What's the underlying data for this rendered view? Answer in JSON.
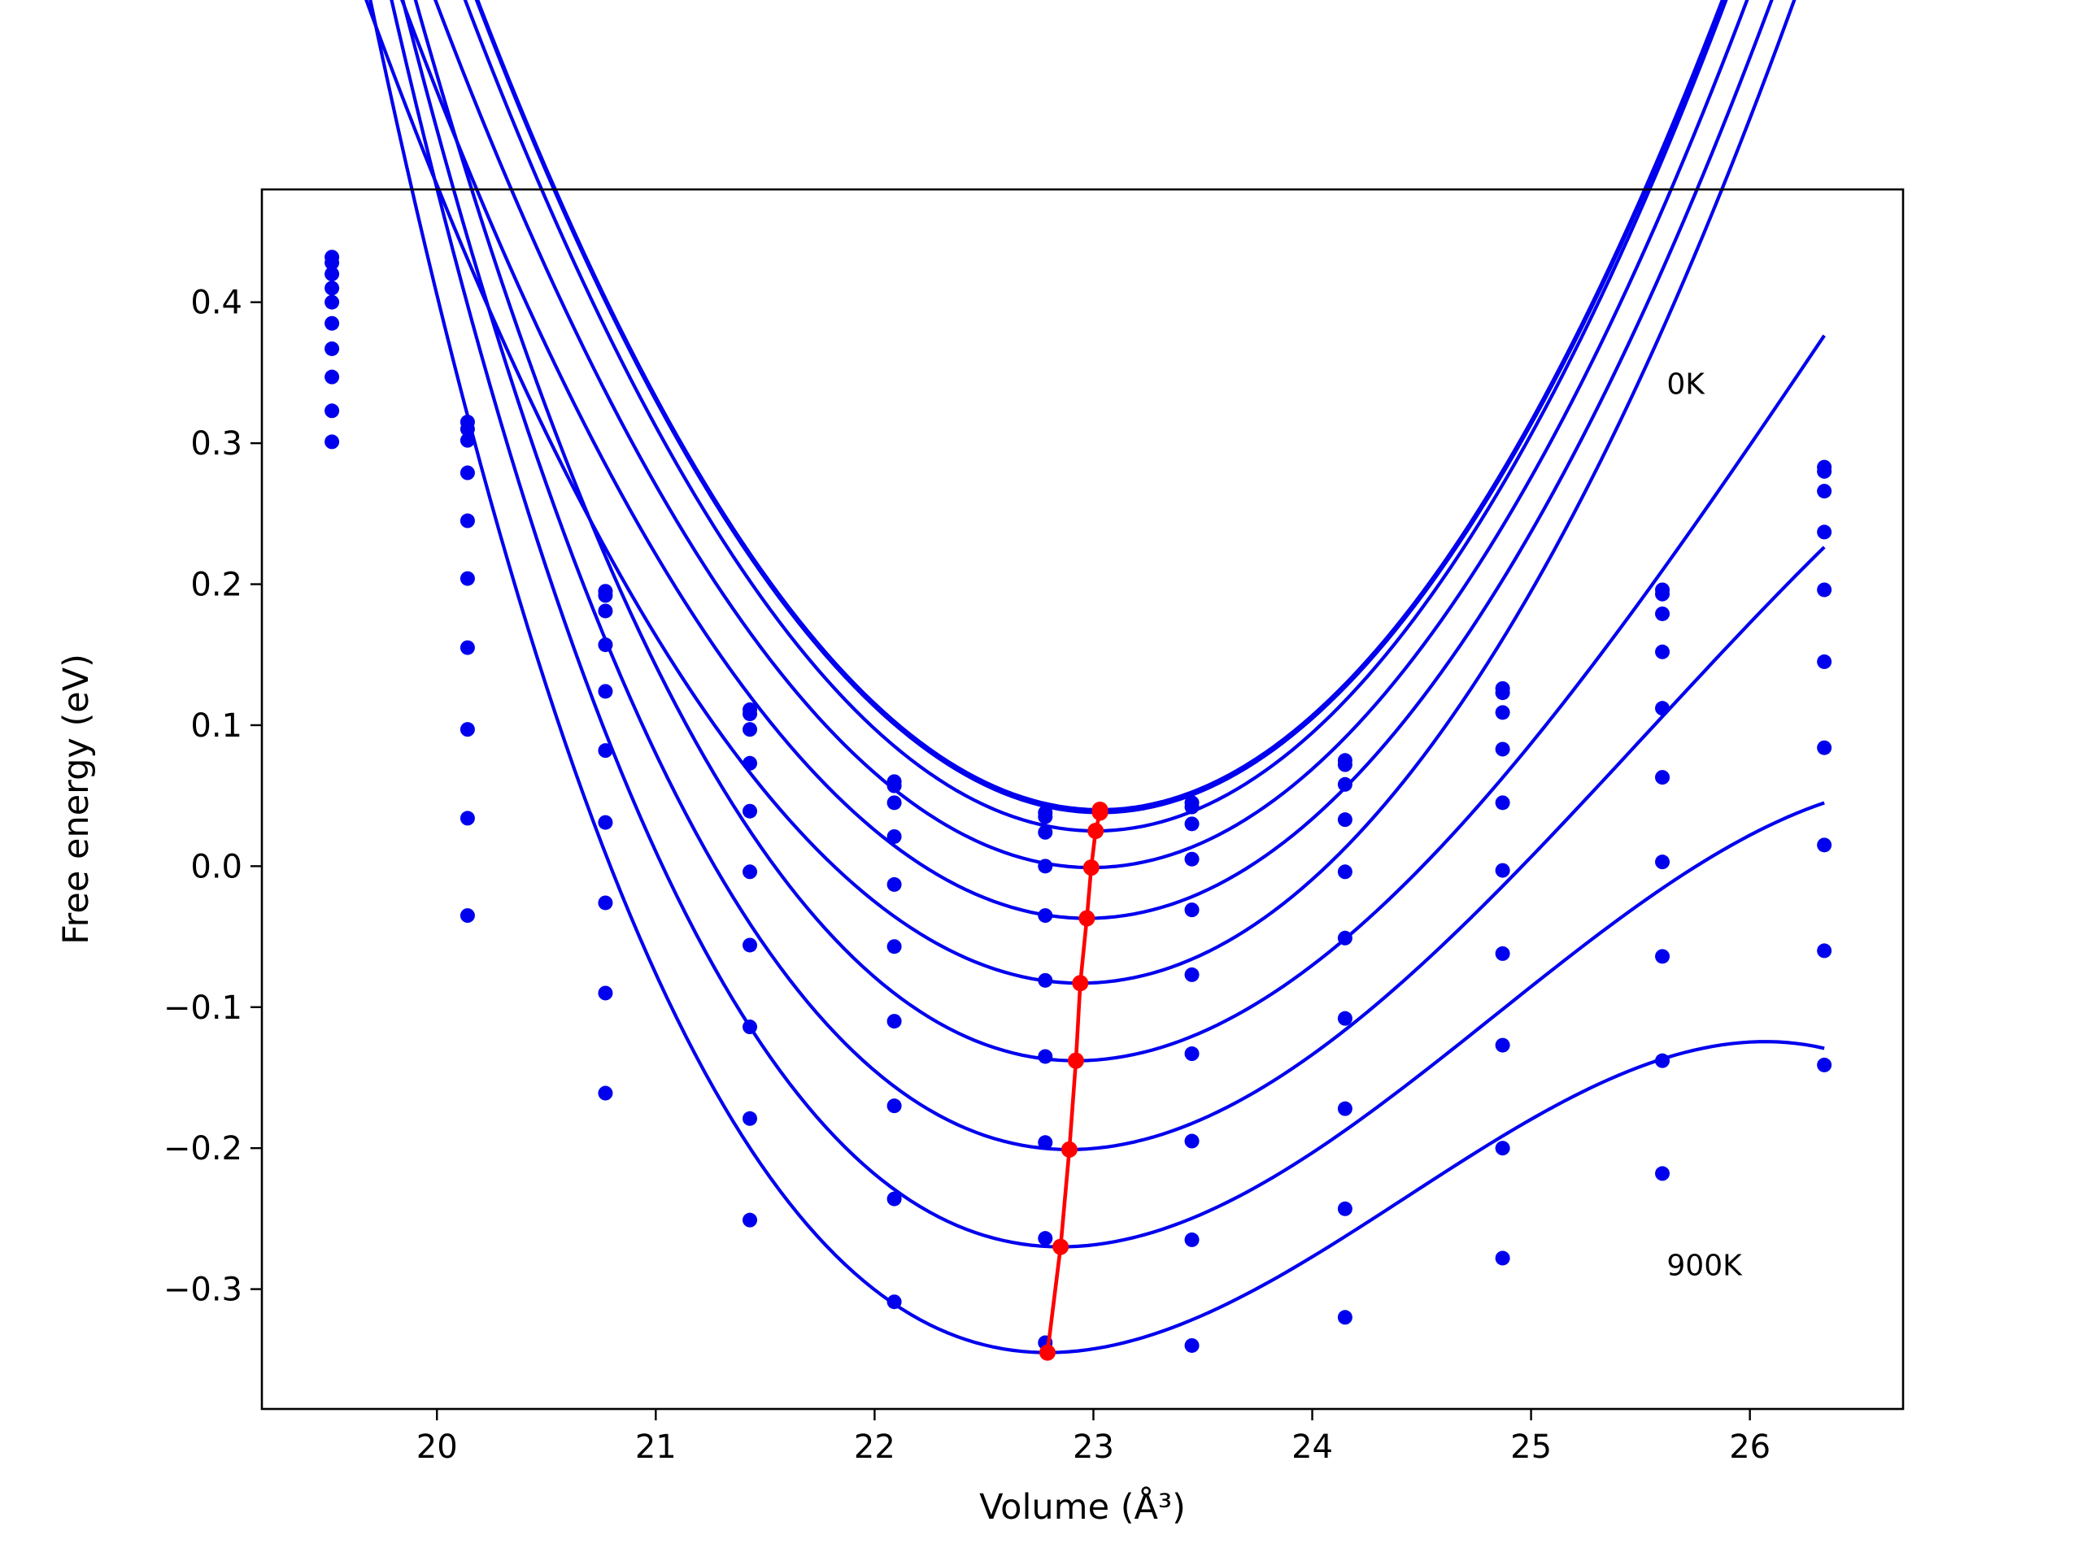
{
  "chart_data": {
    "type": "line",
    "xlabel": "Volume (Å³)",
    "ylabel": "Free energy (eV)",
    "xlim": [
      19.2,
      26.7
    ],
    "ylim": [
      -0.385,
      0.48
    ],
    "xticks": [
      20,
      21,
      22,
      23,
      24,
      25,
      26
    ],
    "yticks": [
      -0.3,
      -0.2,
      -0.1,
      0.0,
      0.1,
      0.2,
      0.3,
      0.4
    ],
    "ytick_labels": [
      "−0.3",
      "−0.2",
      "−0.1",
      "0.0",
      "0.1",
      "0.2",
      "0.3",
      "0.4"
    ],
    "xtick_labels": [
      "20",
      "21",
      "22",
      "23",
      "24",
      "25",
      "26"
    ],
    "grid": false,
    "annotations": [
      {
        "text": "0K",
        "x": 25.62,
        "y": 0.335
      },
      {
        "text": "900K",
        "x": 25.62,
        "y": -0.29
      }
    ],
    "colors": {
      "isotherms": "#0000ee",
      "minimum_path": "#ff0000"
    },
    "volumes": [
      19.52,
      20.14,
      20.77,
      21.43,
      22.09,
      22.78,
      23.45,
      24.15,
      24.87,
      25.6,
      26.34
    ],
    "series": [
      {
        "points": [
          0.432,
          0.315,
          0.195,
          0.111,
          0.06,
          0.038,
          0.045,
          0.075,
          0.126,
          0.196,
          0.283
        ],
        "fit": {
          "v0": 23.03,
          "e0": 0.04,
          "a": 0.071,
          "b": 0.0
        }
      },
      {
        "points": [
          0.428,
          0.31,
          0.192,
          0.108,
          0.057,
          0.035,
          0.042,
          0.072,
          0.123,
          0.193,
          0.28
        ],
        "fit": {
          "v0": 23.03,
          "e0": 0.038,
          "a": 0.071,
          "b": 0.0
        }
      },
      {
        "points": [
          0.42,
          0.302,
          0.181,
          0.097,
          0.045,
          0.024,
          0.03,
          0.058,
          0.109,
          0.179,
          0.266
        ],
        "fit": {
          "v0": 23.01,
          "e0": 0.025,
          "a": 0.071,
          "b": 0.0
        }
      },
      {
        "points": [
          0.41,
          0.279,
          0.157,
          0.073,
          0.021,
          0.0,
          0.005,
          0.033,
          0.083,
          0.152,
          0.237
        ],
        "fit": {
          "v0": 22.99,
          "e0": -0.001,
          "a": 0.0685,
          "b": 0.0
        }
      },
      {
        "points": [
          0.4,
          0.245,
          0.124,
          0.039,
          -0.013,
          -0.035,
          -0.031,
          -0.004,
          0.045,
          0.112,
          0.196
        ],
        "fit": {
          "v0": 22.97,
          "e0": -0.037,
          "a": 0.0665,
          "b": 0.0
        }
      },
      {
        "points": [
          0.385,
          0.204,
          0.082,
          -0.004,
          -0.057,
          -0.081,
          -0.077,
          -0.051,
          -0.003,
          0.063,
          0.145
        ],
        "fit": {
          "v0": 22.94,
          "e0": -0.083,
          "a": 0.0655,
          "b": 0.0
        }
      },
      {
        "points": [
          0.367,
          0.155,
          0.031,
          -0.056,
          -0.11,
          -0.135,
          -0.133,
          -0.108,
          -0.062,
          0.003,
          0.084
        ],
        "fit": {
          "v0": 22.92,
          "e0": -0.138,
          "a": 0.0645,
          "b": -0.006
        }
      },
      {
        "points": [
          0.347,
          0.097,
          -0.026,
          -0.114,
          -0.17,
          -0.196,
          -0.195,
          -0.172,
          -0.127,
          -0.064,
          0.015
        ],
        "fit": {
          "v0": 22.89,
          "e0": -0.201,
          "a": 0.0635,
          "b": -0.008
        }
      },
      {
        "points": [
          0.323,
          0.034,
          -0.09,
          -0.179,
          -0.236,
          -0.264,
          -0.265,
          -0.243,
          -0.2,
          -0.138,
          -0.06
        ],
        "fit": {
          "v0": 22.85,
          "e0": -0.27,
          "a": 0.0625,
          "b": -0.0105
        }
      },
      {
        "points": [
          0.301,
          -0.035,
          -0.161,
          -0.251,
          -0.309,
          -0.338,
          -0.34,
          -0.32,
          -0.278,
          -0.218,
          -0.141
        ],
        "fit": {
          "v0": 22.79,
          "e0": -0.345,
          "a": 0.0615,
          "b": -0.0125
        }
      }
    ],
    "minimum_path": {
      "x": [
        23.03,
        23.03,
        23.01,
        22.99,
        22.97,
        22.94,
        22.92,
        22.89,
        22.85,
        22.79
      ],
      "y": [
        0.04,
        0.038,
        0.025,
        -0.001,
        -0.037,
        -0.083,
        -0.138,
        -0.201,
        -0.27,
        -0.345
      ]
    }
  }
}
